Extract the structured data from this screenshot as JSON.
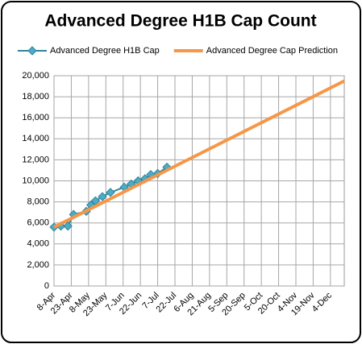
{
  "chart_data": {
    "type": "line",
    "title": "Advanced Degree H1B Cap Count",
    "legend": "top",
    "grid": true,
    "series": [
      {
        "name": "Advanced Degree H1B Cap",
        "color": "#4bacc6",
        "marker": "diamond",
        "x": [
          "8-Apr",
          "14-Apr",
          "20-Apr",
          "25-Apr",
          "6-May",
          "10-May",
          "14-May",
          "20-May",
          "27-May",
          "8-Jun",
          "14-Jun",
          "20-Jun",
          "26-Jun",
          "1-Jul",
          "7-Jul",
          "15-Jul"
        ],
        "values": [
          5600,
          5700,
          5700,
          6800,
          7100,
          7700,
          8100,
          8500,
          8900,
          9400,
          9700,
          10000,
          10200,
          10600,
          10700,
          11300
        ]
      },
      {
        "name": "Advanced Degree Cap Prediction",
        "color": "#f79646",
        "x": [
          "8-Apr",
          "16-Dec"
        ],
        "values": [
          5600,
          19500
        ]
      }
    ],
    "xlim": [
      "8-Apr",
      "16-Dec"
    ],
    "xticks": [
      "8-Apr",
      "23-Apr",
      "8-May",
      "23-May",
      "7-Jun",
      "22-Jun",
      "7-Jul",
      "22-Jul",
      "6-Aug",
      "21-Aug",
      "5-Sep",
      "20-Sep",
      "5-Oct",
      "20-Oct",
      "4-Nov",
      "19-Nov",
      "4-Dec"
    ],
    "ylim": [
      0,
      20000
    ],
    "yticks": [
      0,
      {
        "value": 2000,
        "label": "2,000"
      },
      {
        "value": 4000,
        "label": "4,000"
      },
      {
        "value": 6000,
        "label": "6,000"
      },
      {
        "value": 8000,
        "label": "8,000"
      },
      {
        "value": 10000,
        "label": "10,000"
      },
      {
        "value": 12000,
        "label": "12,000"
      },
      {
        "value": 14000,
        "label": "14,000"
      },
      {
        "value": 16000,
        "label": "16,000"
      },
      {
        "value": 18000,
        "label": "18,000"
      },
      {
        "value": 20000,
        "label": "20,000"
      }
    ]
  }
}
